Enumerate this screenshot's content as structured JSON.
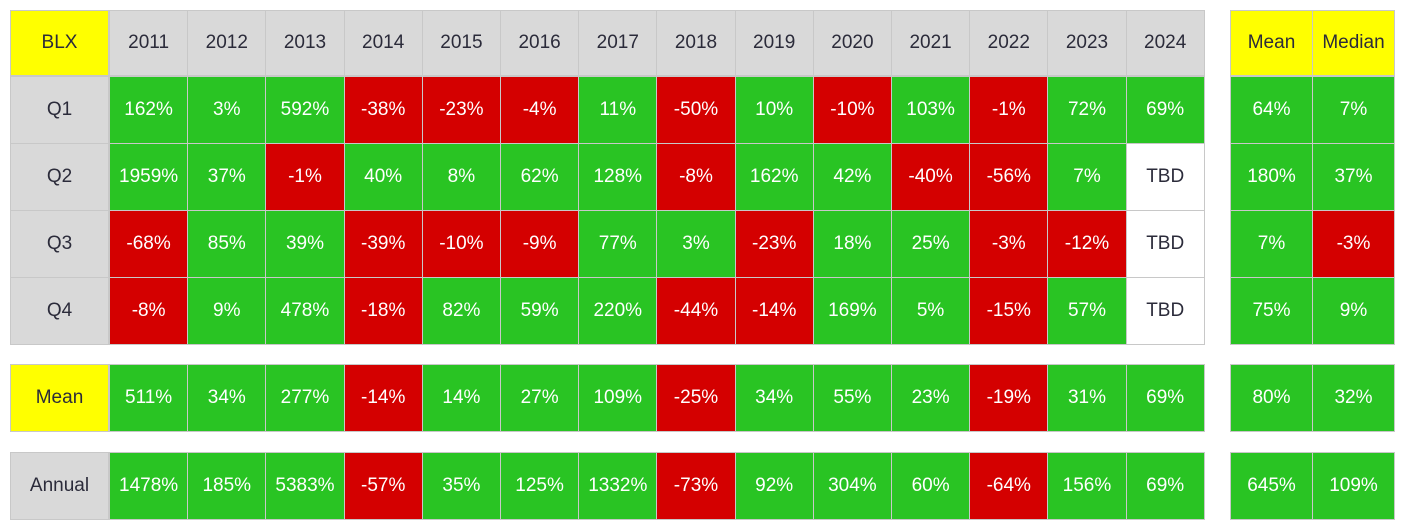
{
  "table": {
    "header": {
      "corner": "BLX",
      "years": [
        "2011",
        "2012",
        "2013",
        "2014",
        "2015",
        "2016",
        "2017",
        "2018",
        "2019",
        "2020",
        "2021",
        "2022",
        "2023",
        "2024"
      ],
      "stats": [
        "Mean",
        "Median"
      ]
    },
    "rows": [
      {
        "label": "Q1",
        "values": [
          "162%",
          "3%",
          "592%",
          "-38%",
          "-23%",
          "-4%",
          "11%",
          "-50%",
          "10%",
          "-10%",
          "103%",
          "-1%",
          "72%",
          "69%"
        ],
        "stats": [
          "64%",
          "7%"
        ]
      },
      {
        "label": "Q2",
        "values": [
          "1959%",
          "37%",
          "-1%",
          "40%",
          "8%",
          "62%",
          "128%",
          "-8%",
          "162%",
          "42%",
          "-40%",
          "-56%",
          "7%",
          "TBD"
        ],
        "stats": [
          "180%",
          "37%"
        ]
      },
      {
        "label": "Q3",
        "values": [
          "-68%",
          "85%",
          "39%",
          "-39%",
          "-10%",
          "-9%",
          "77%",
          "3%",
          "-23%",
          "18%",
          "25%",
          "-3%",
          "-12%",
          "TBD"
        ],
        "stats": [
          "7%",
          "-3%"
        ]
      },
      {
        "label": "Q4",
        "values": [
          "-8%",
          "9%",
          "478%",
          "-18%",
          "82%",
          "59%",
          "220%",
          "-44%",
          "-14%",
          "169%",
          "5%",
          "-15%",
          "57%",
          "TBD"
        ],
        "stats": [
          "75%",
          "9%"
        ]
      },
      {
        "label": "Mean",
        "values": [
          "511%",
          "34%",
          "277%",
          "-14%",
          "14%",
          "27%",
          "109%",
          "-25%",
          "34%",
          "55%",
          "23%",
          "-19%",
          "31%",
          "69%"
        ],
        "stats": [
          "80%",
          "32%"
        ]
      },
      {
        "label": "Annual",
        "values": [
          "1478%",
          "185%",
          "5383%",
          "-57%",
          "35%",
          "125%",
          "1332%",
          "-73%",
          "92%",
          "304%",
          "60%",
          "-64%",
          "156%",
          "69%"
        ],
        "stats": [
          "645%",
          "109%"
        ]
      }
    ]
  }
}
